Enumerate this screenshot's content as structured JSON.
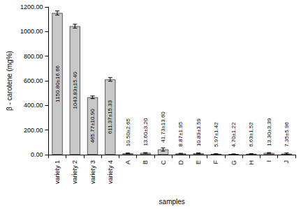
{
  "chart_data": {
    "type": "bar",
    "x_label": "samples",
    "y_label": "β - carotene (mg%)",
    "categories": [
      "variety 1",
      "variety 2",
      "variety 3",
      "variety 4",
      "A",
      "B",
      "C",
      "D",
      "E",
      "F",
      "G",
      "H",
      "I",
      "J"
    ],
    "values": [
      1150.8,
      1043.83,
      465.77,
      611.37,
      10.5,
      13.6,
      41.73,
      8.87,
      10.83,
      5.97,
      4.7,
      6.63,
      13.3,
      7.35
    ],
    "errors": [
      16.66,
      15.4,
      10.9,
      15.33,
      2.65,
      3.2,
      13.6,
      1.95,
      3.59,
      1.42,
      1.22,
      1.52,
      3.39,
      5.96
    ],
    "value_labels": [
      "1150.80±16.66",
      "1043.83±15.40",
      "465.77±10.90",
      "611.37±15.33",
      "10.50±2.65",
      "13.60±3.20",
      "41.73±13.60",
      "8.87±1.95",
      "10.83±3.59",
      "5.97±1.42",
      "4.70±1.22",
      "6.63±1.52",
      "13.30±3.39",
      "7.35±5.96"
    ],
    "color": "#c8c8c8",
    "ylim": [
      0,
      1200
    ],
    "yticks": [
      {
        "value": 0,
        "label": "0.00"
      },
      {
        "value": 200,
        "label": "200.00"
      },
      {
        "value": 400,
        "label": "400.00"
      },
      {
        "value": 600,
        "label": "600.00"
      },
      {
        "value": 800,
        "label": "800.00"
      },
      {
        "value": 1000,
        "label": "1000.00"
      },
      {
        "value": 1200,
        "label": "1200.00"
      }
    ],
    "grid": false,
    "data_labels": true
  }
}
